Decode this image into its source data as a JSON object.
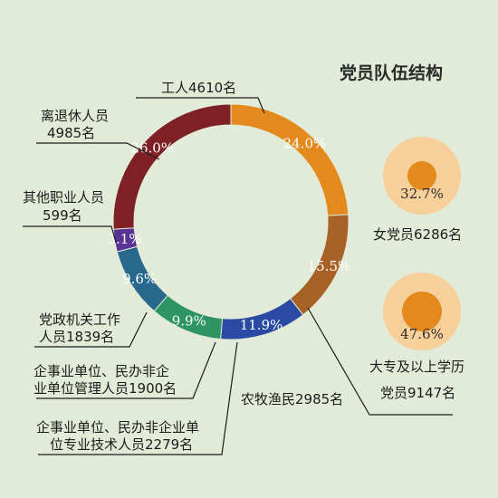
{
  "title": "党员队伍结构",
  "chart_data": {
    "type": "pie",
    "segments": [
      {
        "key": "workers",
        "pct_label": "24.0%",
        "value": 24.0,
        "color": "#e48a1d",
        "label_lines": [
          "工人4610名"
        ]
      },
      {
        "key": "farmers",
        "pct_label": "15.5%",
        "value": 15.5,
        "color": "#a86226",
        "label_lines": [
          "农牧渔民2985名"
        ]
      },
      {
        "key": "enterprise_tech",
        "pct_label": "11.9%",
        "value": 11.9,
        "color": "#2a4aa4",
        "label_lines": [
          "企事业单位、民办非企业单",
          "位专业技术人员2279名"
        ]
      },
      {
        "key": "enterprise_mgmt",
        "pct_label": "9.9%",
        "value": 9.9,
        "color": "#2e9464",
        "label_lines": [
          "企事业单位、民办非企",
          "业单位管理人员1900名"
        ]
      },
      {
        "key": "party_gov",
        "pct_label": "9.6%",
        "value": 9.6,
        "color": "#27688c",
        "label_lines": [
          "党政机关工作",
          "人员1839名"
        ]
      },
      {
        "key": "other_occupation",
        "pct_label": "3.1%",
        "value": 3.1,
        "color": "#5b3394",
        "label_lines": [
          "其他职业人员",
          "599名"
        ]
      },
      {
        "key": "retired",
        "pct_label": "26.0%",
        "value": 26.0,
        "color": "#7e2126",
        "label_lines": [
          "离退休人员",
          "4985名"
        ]
      }
    ],
    "bubbles": [
      {
        "key": "female",
        "pct_label": "32.7%",
        "value": 32.7,
        "label_lines": [
          "女党员6286名"
        ],
        "outer_color": "#f6cf9b",
        "inner_color": "#e48a1d"
      },
      {
        "key": "college",
        "pct_label": "47.6%",
        "value": 47.6,
        "label_lines": [
          "大专及以上学历",
          "党员9147名"
        ],
        "outer_color": "#f6cf9b",
        "inner_color": "#e48a1d"
      }
    ]
  }
}
